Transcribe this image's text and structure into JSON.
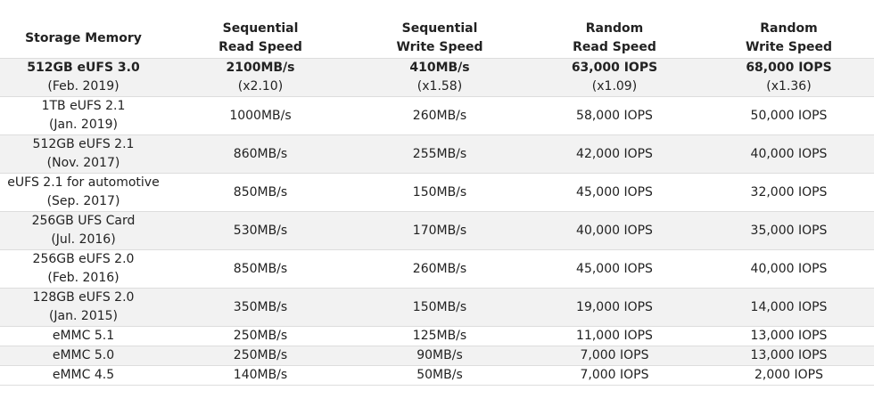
{
  "headers": [
    [
      "Storage Memory"
    ],
    [
      "Sequential",
      "Read Speed"
    ],
    [
      "Sequential",
      "Write Speed"
    ],
    [
      "Random",
      "Read Speed"
    ],
    [
      "Random",
      "Write Speed"
    ]
  ],
  "rows": [
    {
      "storage": [
        "512GB eUFS 3.0",
        "(Feb. 2019)"
      ],
      "seq_read": [
        "2100MB/s",
        "(x2.10)"
      ],
      "seq_write": [
        "410MB/s",
        "(x1.58)"
      ],
      "rand_read": [
        "63,000 IOPS",
        "(x1.09)"
      ],
      "rand_write": [
        "68,000 IOPS",
        "(x1.36)"
      ]
    },
    {
      "storage": [
        "1TB eUFS 2.1",
        "(Jan. 2019)"
      ],
      "seq_read": [
        "1000MB/s"
      ],
      "seq_write": [
        "260MB/s"
      ],
      "rand_read": [
        "58,000 IOPS"
      ],
      "rand_write": [
        "50,000 IOPS"
      ]
    },
    {
      "storage": [
        "512GB eUFS 2.1",
        "(Nov. 2017)"
      ],
      "seq_read": [
        "860MB/s"
      ],
      "seq_write": [
        "255MB/s"
      ],
      "rand_read": [
        "42,000 IOPS"
      ],
      "rand_write": [
        "40,000 IOPS"
      ]
    },
    {
      "storage": [
        "eUFS 2.1 for automotive",
        "(Sep. 2017)"
      ],
      "seq_read": [
        "850MB/s"
      ],
      "seq_write": [
        "150MB/s"
      ],
      "rand_read": [
        "45,000 IOPS"
      ],
      "rand_write": [
        "32,000 IOPS"
      ]
    },
    {
      "storage": [
        "256GB UFS Card",
        "(Jul. 2016)"
      ],
      "seq_read": [
        "530MB/s"
      ],
      "seq_write": [
        "170MB/s"
      ],
      "rand_read": [
        "40,000 IOPS"
      ],
      "rand_write": [
        "35,000 IOPS"
      ]
    },
    {
      "storage": [
        "256GB eUFS 2.0",
        "(Feb. 2016)"
      ],
      "seq_read": [
        "850MB/s"
      ],
      "seq_write": [
        "260MB/s"
      ],
      "rand_read": [
        "45,000 IOPS"
      ],
      "rand_write": [
        "40,000 IOPS"
      ]
    },
    {
      "storage": [
        "128GB eUFS 2.0",
        "(Jan. 2015)"
      ],
      "seq_read": [
        "350MB/s"
      ],
      "seq_write": [
        "150MB/s"
      ],
      "rand_read": [
        "19,000 IOPS"
      ],
      "rand_write": [
        "14,000 IOPS"
      ]
    },
    {
      "storage": [
        "eMMC 5.1"
      ],
      "seq_read": [
        "250MB/s"
      ],
      "seq_write": [
        "125MB/s"
      ],
      "rand_read": [
        "11,000 IOPS"
      ],
      "rand_write": [
        "13,000 IOPS"
      ]
    },
    {
      "storage": [
        "eMMC 5.0"
      ],
      "seq_read": [
        "250MB/s"
      ],
      "seq_write": [
        "90MB/s"
      ],
      "rand_read": [
        "7,000 IOPS"
      ],
      "rand_write": [
        "13,000 IOPS"
      ]
    },
    {
      "storage": [
        "eMMC 4.5"
      ],
      "seq_read": [
        "140MB/s"
      ],
      "seq_write": [
        "50MB/s"
      ],
      "rand_read": [
        "7,000 IOPS"
      ],
      "rand_write": [
        "2,000 IOPS"
      ]
    }
  ]
}
